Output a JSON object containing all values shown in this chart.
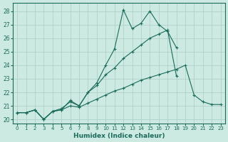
{
  "xlabel": "Humidex (Indice chaleur)",
  "xlim": [
    -0.5,
    23.5
  ],
  "ylim": [
    19.7,
    28.6
  ],
  "yticks": [
    20,
    21,
    22,
    23,
    24,
    25,
    26,
    27,
    28
  ],
  "xticks": [
    0,
    1,
    2,
    3,
    4,
    5,
    6,
    7,
    8,
    9,
    10,
    11,
    12,
    13,
    14,
    15,
    16,
    17,
    18,
    19,
    20,
    21,
    22,
    23
  ],
  "background_color": "#cce9e2",
  "grid_color": "#aacdc6",
  "line_color": "#1a6b5a",
  "line1_x": [
    0,
    1,
    2,
    3,
    4,
    5,
    6,
    7,
    8,
    9,
    10,
    11,
    12,
    13,
    14,
    15,
    16,
    17,
    18,
    19,
    20,
    21,
    22,
    23
  ],
  "line1_y": [
    20.5,
    20.5,
    20.7,
    20.0,
    20.6,
    20.7,
    21.4,
    21.0,
    22.0,
    22.7,
    24.0,
    25.2,
    28.1,
    26.7,
    27.1,
    28.0,
    27.0,
    26.5,
    25.3,
    null,
    null,
    null,
    null,
    null
  ],
  "line2_x": [
    0,
    1,
    2,
    3,
    4,
    5,
    6,
    7,
    8,
    9,
    10,
    11,
    12,
    13,
    14,
    15,
    16,
    17,
    18,
    19,
    20,
    21,
    22,
    23
  ],
  "line2_y": [
    20.5,
    20.5,
    20.7,
    20.0,
    20.6,
    20.8,
    21.3,
    21.0,
    22.0,
    22.5,
    23.3,
    23.8,
    24.5,
    25.0,
    25.5,
    26.0,
    26.3,
    26.6,
    23.2,
    null,
    null,
    null,
    null,
    null
  ],
  "line3_x": [
    0,
    1,
    2,
    3,
    4,
    5,
    6,
    7,
    8,
    9,
    10,
    11,
    12,
    13,
    14,
    15,
    16,
    17,
    18,
    19,
    20,
    21,
    22,
    23
  ],
  "line3_y": [
    20.5,
    20.5,
    20.7,
    20.0,
    20.6,
    20.7,
    21.0,
    20.9,
    21.2,
    21.5,
    21.8,
    22.1,
    22.3,
    22.6,
    22.9,
    23.1,
    23.3,
    23.5,
    23.7,
    24.0,
    21.8,
    21.3,
    21.1,
    21.1
  ]
}
